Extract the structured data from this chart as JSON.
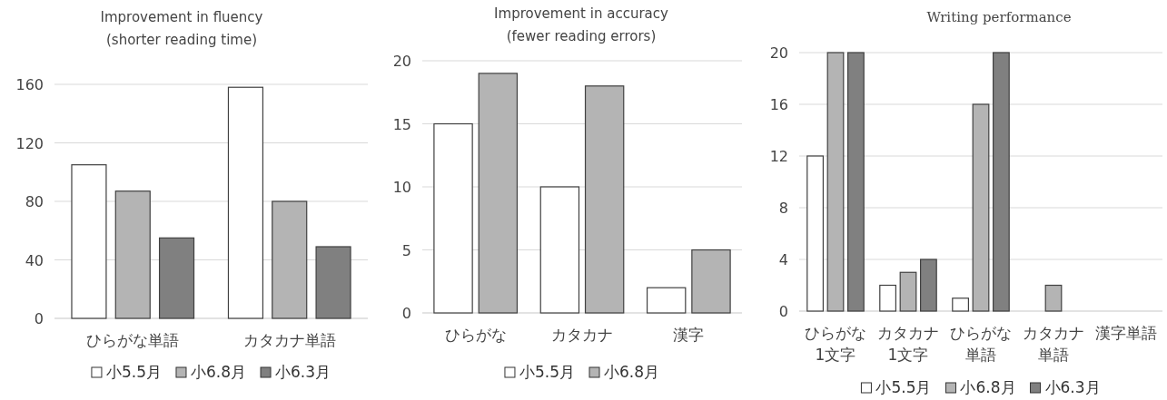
{
  "chart_data": [
    {
      "type": "bar",
      "title": "Improvement in fluency",
      "subtitle": "(shorter reading time)",
      "categories": [
        "ひらがな単語",
        "カタカナ単語"
      ],
      "series": [
        {
          "name": "小5.5月",
          "color": "#ffffff",
          "values": [
            105,
            158
          ]
        },
        {
          "name": "小6.8月",
          "color": "#b4b4b4",
          "values": [
            87,
            80
          ]
        },
        {
          "name": "小6.3月",
          "color": "#808080",
          "values": [
            55,
            49
          ]
        }
      ],
      "ylim": [
        0,
        160
      ],
      "yticks": [
        0,
        40,
        80,
        120,
        160
      ],
      "grid": "y",
      "legend": "bottom"
    },
    {
      "type": "bar",
      "title": "Improvement in accuracy",
      "subtitle": "(fewer reading errors)",
      "categories": [
        "ひらがな",
        "カタカナ",
        "漢字"
      ],
      "series": [
        {
          "name": "小5.5月",
          "color": "#ffffff",
          "values": [
            15,
            10,
            2
          ]
        },
        {
          "name": "小6.8月",
          "color": "#b4b4b4",
          "values": [
            19,
            18,
            5
          ]
        }
      ],
      "ylim": [
        0,
        20
      ],
      "yticks": [
        0,
        5,
        10,
        15,
        20
      ],
      "grid": "y",
      "legend": "bottom"
    },
    {
      "type": "bar",
      "title": "Writing performance",
      "categories": [
        "ひらがな1文字",
        "カタカナ1文字",
        "ひらがな単語",
        "カタカナ単語",
        "漢字単語"
      ],
      "series": [
        {
          "name": "小5.5月",
          "color": "#ffffff",
          "values": [
            12,
            2,
            1,
            0,
            0
          ]
        },
        {
          "name": "小6.8月",
          "color": "#b4b4b4",
          "values": [
            20,
            3,
            16,
            2,
            0
          ]
        },
        {
          "name": "小6.3月",
          "color": "#808080",
          "values": [
            20,
            4,
            20,
            0,
            0
          ]
        }
      ],
      "ylim": [
        0,
        20
      ],
      "yticks": [
        0,
        4,
        8,
        12,
        16,
        20
      ],
      "grid": "y",
      "legend": "bottom"
    }
  ]
}
